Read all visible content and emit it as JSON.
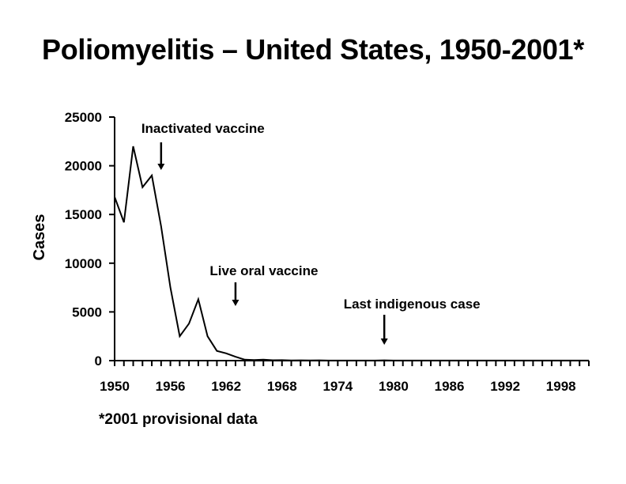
{
  "title": "Poliomyelitis – United States, 1950-2001*",
  "footnote": "*2001 provisional data",
  "chart_data": {
    "type": "line",
    "title": "Poliomyelitis – United States, 1950-2001*",
    "xlabel": "",
    "ylabel": "Cases",
    "xlim": [
      1950,
      2001
    ],
    "ylim": [
      0,
      25000
    ],
    "y_ticks": [
      0,
      5000,
      10000,
      15000,
      20000,
      25000
    ],
    "x_tick_labels": [
      "1950",
      "1956",
      "1962",
      "1968",
      "1974",
      "1980",
      "1986",
      "1992",
      "1998"
    ],
    "grid": false,
    "series": [
      {
        "name": "Cases",
        "x": [
          1950,
          1951,
          1952,
          1953,
          1954,
          1955,
          1956,
          1957,
          1958,
          1959,
          1960,
          1961,
          1962,
          1963,
          1964,
          1965,
          1966,
          1967,
          1968,
          1969,
          1970,
          1971,
          1972,
          1973,
          1974,
          1975,
          1976,
          1977,
          1978,
          1979,
          1980,
          1981,
          1982,
          1983,
          1984,
          1985,
          1986,
          1987,
          1988,
          1989,
          1990,
          1991,
          1992,
          1993,
          1994,
          1995,
          1996,
          1997,
          1998,
          1999,
          2000,
          2001
        ],
        "values": [
          16800,
          14200,
          22000,
          17800,
          19000,
          13800,
          7500,
          2500,
          3800,
          6300,
          2500,
          1000,
          750,
          400,
          100,
          60,
          100,
          40,
          50,
          20,
          30,
          20,
          30,
          10,
          10,
          10,
          10,
          10,
          10,
          30,
          10,
          10,
          10,
          10,
          10,
          10,
          10,
          10,
          10,
          10,
          10,
          10,
          10,
          10,
          10,
          10,
          10,
          10,
          10,
          10,
          10,
          10
        ]
      }
    ],
    "annotations": [
      {
        "label": "Inactivated vaccine",
        "year": 1955
      },
      {
        "label": "Live oral vaccine",
        "year": 1963
      },
      {
        "label": "Last indigenous case",
        "year": 1979
      }
    ]
  }
}
